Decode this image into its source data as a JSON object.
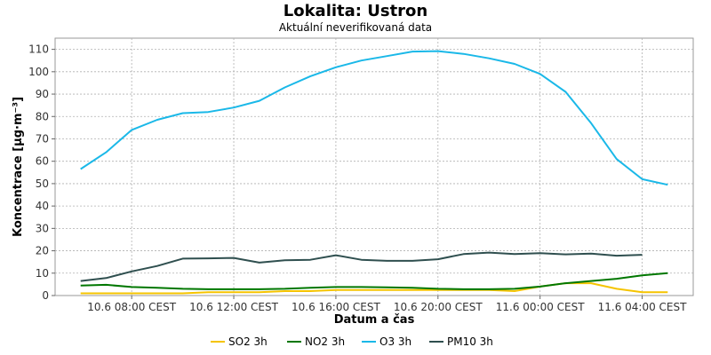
{
  "chart_data": {
    "type": "line",
    "title": "Lokalita: Ustron",
    "subtitle": "Aktuální neverifikovaná data",
    "xlabel": "Datum a čas",
    "ylabel": "Koncentrace [µg·m⁻³]",
    "ylim": [
      0,
      115
    ],
    "yticks": [
      0,
      10,
      20,
      30,
      40,
      50,
      60,
      70,
      80,
      90,
      100,
      110
    ],
    "xlim": [
      "10.6 05:00 CEST",
      "11.6 06:00 CEST"
    ],
    "xticks": [
      {
        "label": "10.6 08:00 CEST",
        "x": "10.6 08:00 CEST"
      },
      {
        "label": "10.6 12:00 CEST",
        "x": "10.6 12:00 CEST"
      },
      {
        "label": "10.6 16:00 CEST",
        "x": "10.6 16:00 CEST"
      },
      {
        "label": "10.6 20:00 CEST",
        "x": "10.6 20:00 CEST"
      },
      {
        "label": "11.6 00:00 CEST",
        "x": "11.6 00:00 CEST"
      },
      {
        "label": "11.6 04:00 CEST",
        "x": "11.6 04:00 CEST"
      }
    ],
    "grid": true,
    "legend_position": "bottom",
    "x": [
      "10.6 06:00 CEST",
      "10.6 07:00 CEST",
      "10.6 08:00 CEST",
      "10.6 09:00 CEST",
      "10.6 10:00 CEST",
      "10.6 11:00 CEST",
      "10.6 12:00 CEST",
      "10.6 13:00 CEST",
      "10.6 14:00 CEST",
      "10.6 15:00 CEST",
      "10.6 16:00 CEST",
      "10.6 17:00 CEST",
      "10.6 18:00 CEST",
      "10.6 19:00 CEST",
      "10.6 20:00 CEST",
      "10.6 21:00 CEST",
      "10.6 22:00 CEST",
      "10.6 23:00 CEST",
      "11.6 00:00 CEST",
      "11.6 01:00 CEST",
      "11.6 02:00 CEST",
      "11.6 03:00 CEST",
      "11.6 04:00 CEST",
      "11.6 05:00 CEST"
    ],
    "series": [
      {
        "name": "SO2 3h",
        "color": "#f5c400",
        "values": [
          1.0,
          1.0,
          1.0,
          1.0,
          1.0,
          1.5,
          1.5,
          1.5,
          2.0,
          2.0,
          2.5,
          2.5,
          2.5,
          2.5,
          2.5,
          2.5,
          2.5,
          2.0,
          4.0,
          5.5,
          5.5,
          3.0,
          1.5,
          1.5
        ]
      },
      {
        "name": "NO2 3h",
        "color": "#007700",
        "values": [
          4.5,
          4.8,
          3.8,
          3.5,
          3.0,
          2.8,
          2.8,
          2.8,
          3.0,
          3.5,
          3.8,
          3.8,
          3.7,
          3.5,
          3.0,
          2.8,
          2.8,
          3.0,
          4.0,
          5.5,
          6.5,
          7.5,
          9.0,
          10.0
        ]
      },
      {
        "name": "O3 3h",
        "color": "#1ab8e8",
        "values": [
          56.5,
          64.0,
          74.0,
          78.5,
          81.5,
          82.0,
          84.0,
          87.0,
          93.0,
          98.0,
          102.0,
          105.0,
          107.0,
          109.0,
          109.2,
          108.0,
          106.0,
          103.5,
          99.0,
          91.0,
          77.0,
          61.0,
          52.0,
          49.5
        ]
      },
      {
        "name": "PM10 3h",
        "color": "#2f4f4f",
        "values": [
          6.5,
          7.8,
          10.8,
          13.2,
          16.5,
          16.6,
          16.8,
          14.7,
          15.8,
          16.0,
          18.0,
          16.0,
          15.5,
          15.5,
          16.2,
          18.5,
          19.2,
          18.5,
          18.9,
          18.4,
          18.7,
          17.8,
          18.2,
          null
        ]
      }
    ]
  }
}
